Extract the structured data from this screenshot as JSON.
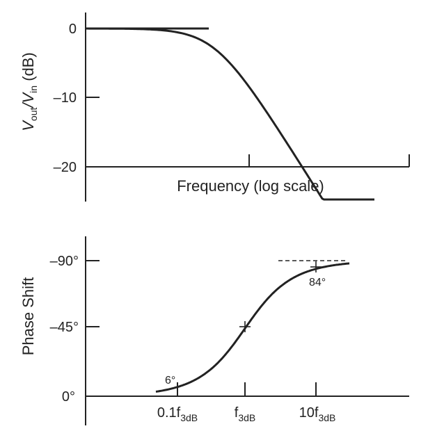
{
  "chart_data": [
    {
      "type": "line",
      "title": "",
      "xlabel": "Frequency (log scale)",
      "ylabel": {
        "main": "V",
        "sub1": "out",
        "mid": "/V",
        "sub2": "in",
        "unit": " (dB)"
      },
      "x_scale": "log",
      "xlim_decades": [
        -2.3,
        0.3
      ],
      "ylim": [
        -25,
        2
      ],
      "y_ticks": [
        {
          "value": 0,
          "label": "0"
        },
        {
          "value": -10,
          "label": "–10"
        },
        {
          "value": -20,
          "label": "–20"
        }
      ],
      "x_ticks_decades": [
        0
      ],
      "grid": false,
      "series": [
        {
          "values_description_only": false,
          "points": [
            {
              "x_decade": -2.3,
              "y": 0
            },
            {
              "x_decade": -1.0,
              "y": 0
            },
            {
              "x_decade": -0.5,
              "y": -1
            },
            {
              "x_decade": 0.0,
              "y": -3
            },
            {
              "x_decade": 0.5,
              "y": -7
            },
            {
              "x_decade": 1.0,
              "y": -20
            },
            {
              "x_decade": 1.4,
              "y": -25
            }
          ]
        }
      ]
    },
    {
      "type": "line",
      "title": "",
      "xlabel": "",
      "ylabel": "Phase Shift",
      "x_scale": "log",
      "y_ticks": [
        {
          "value": -90,
          "label": "–90°"
        },
        {
          "value": -45,
          "label": "–45°"
        },
        {
          "value": 0,
          "label": "0°"
        }
      ],
      "x_ticks": [
        {
          "decade": -1,
          "main": "0.1f",
          "sub": "3dB"
        },
        {
          "decade": 0,
          "main": "f",
          "sub": "3dB"
        },
        {
          "decade": 1,
          "main": "10f",
          "sub": "3dB"
        }
      ],
      "grid": false,
      "annotations": [
        {
          "text": "6°",
          "decade": -1,
          "phase": -6
        },
        {
          "text": "84°",
          "decade": 1,
          "phase": -84
        }
      ],
      "markers": [
        {
          "decade": 0,
          "phase": -45
        },
        {
          "decade": 1,
          "phase": -84
        }
      ],
      "dashed_asymptote": {
        "phase": -90
      },
      "series": [
        {
          "decade_range": [
            -1.3,
            1.5
          ],
          "formula": "phase = -atan(10^decade)"
        }
      ]
    }
  ]
}
